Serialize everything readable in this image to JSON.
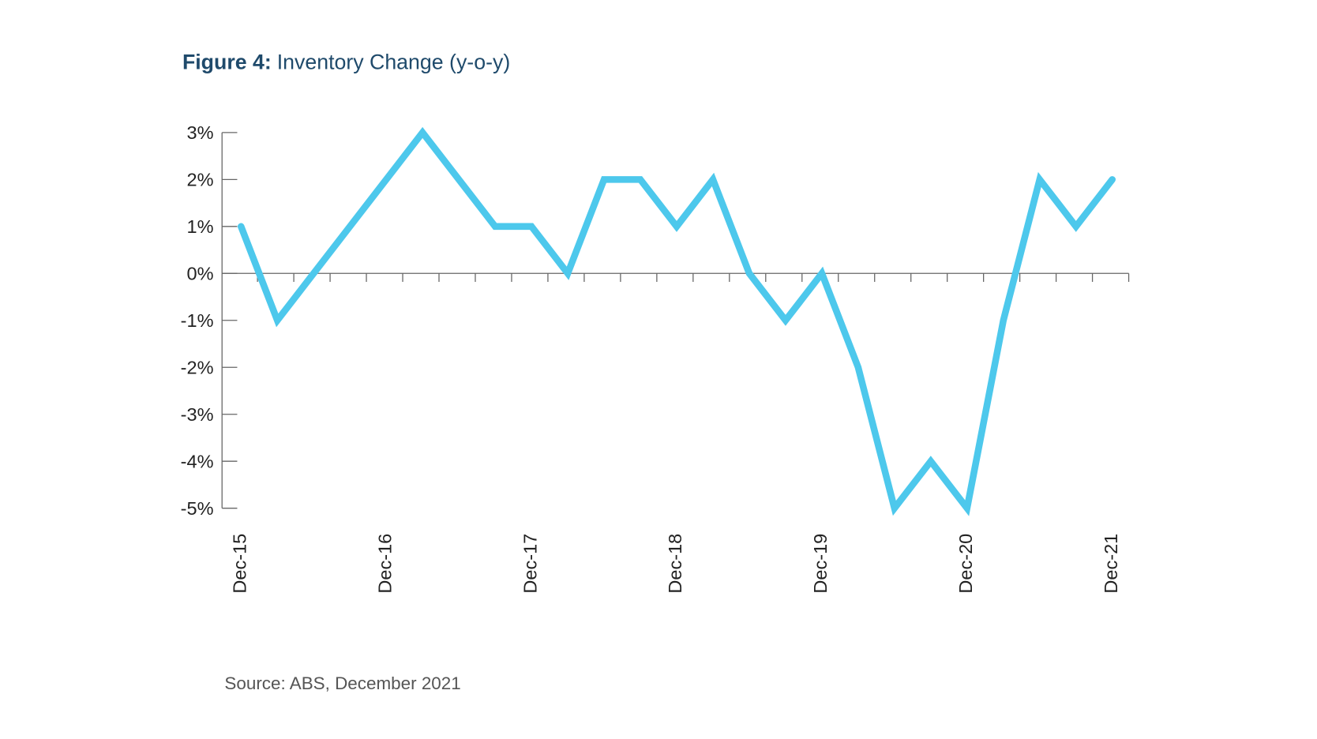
{
  "chart_data": {
    "type": "line",
    "figure_label": "Figure 4:",
    "title": "Inventory Change (y-o-y)",
    "source": "Source: ABS, December 2021",
    "categories": [
      "Dec-15",
      null,
      null,
      null,
      "Dec-16",
      null,
      null,
      null,
      "Dec-17",
      null,
      null,
      null,
      "Dec-18",
      null,
      null,
      null,
      "Dec-19",
      null,
      null,
      null,
      "Dec-20",
      null,
      null,
      null,
      "Dec-21"
    ],
    "values": [
      1,
      -1,
      0,
      1,
      2,
      3,
      2,
      1,
      1,
      0,
      2,
      2,
      1,
      2,
      0,
      -1,
      0,
      -2,
      -5,
      -4,
      -5,
      -1,
      2,
      1,
      2
    ],
    "color": "#4dc8ec",
    "ylim": [
      -5,
      3
    ],
    "yticks": [
      {
        "value": -5,
        "label": "-5%"
      },
      {
        "value": -4,
        "label": "-4%"
      },
      {
        "value": -3,
        "label": "-3%"
      },
      {
        "value": -2,
        "label": "-2%"
      },
      {
        "value": -1,
        "label": "-1%"
      },
      {
        "value": 0,
        "label": "0%"
      },
      {
        "value": 1,
        "label": "1%"
      },
      {
        "value": 2,
        "label": "2%"
      },
      {
        "value": 3,
        "label": "3%"
      }
    ]
  }
}
